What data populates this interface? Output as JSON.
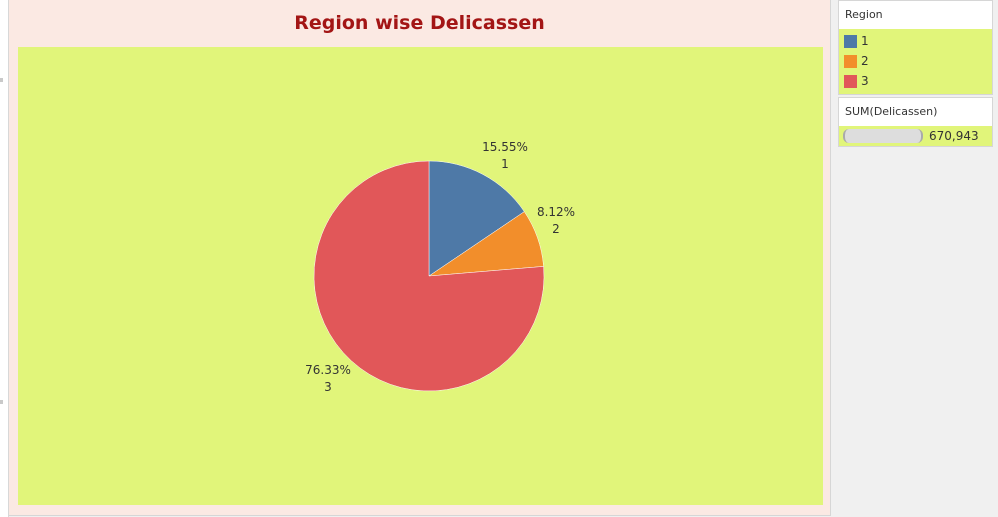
{
  "chart_data": {
    "type": "pie",
    "title": "Region wise Delicassen",
    "slices": [
      {
        "label": "1",
        "percent": 15.55,
        "percent_label": "15.55%",
        "color": "#4e79a7"
      },
      {
        "label": "2",
        "percent": 8.12,
        "percent_label": "8.12%",
        "color": "#f28e2b"
      },
      {
        "label": "3",
        "percent": 76.33,
        "percent_label": "76.33%",
        "color": "#e15759"
      }
    ],
    "background": "#e1f57a"
  },
  "legend": {
    "title": "Region",
    "items": [
      {
        "label": "1",
        "color": "#4e79a7"
      },
      {
        "label": "2",
        "color": "#f28e2b"
      },
      {
        "label": "3",
        "color": "#e15759"
      }
    ]
  },
  "size_legend": {
    "title": "SUM(Delicassen)",
    "value": "670,943"
  }
}
